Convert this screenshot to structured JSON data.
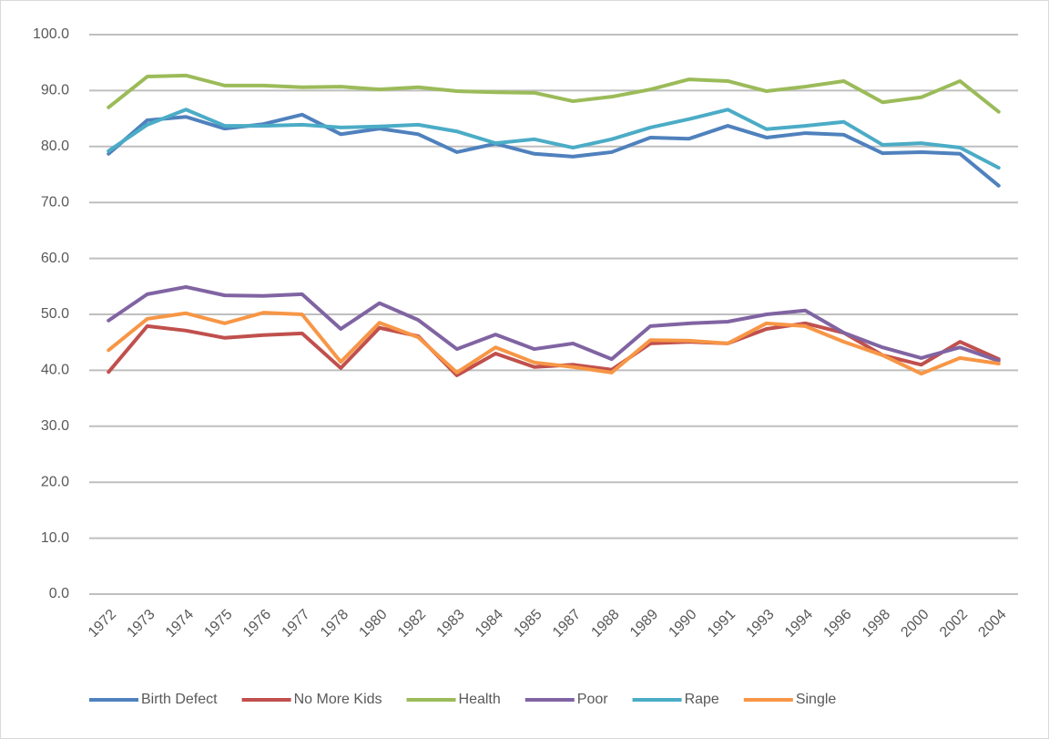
{
  "chart_data": {
    "type": "line",
    "categories": [
      "1972",
      "1973",
      "1974",
      "1975",
      "1976",
      "1977",
      "1978",
      "1980",
      "1982",
      "1983",
      "1984",
      "1985",
      "1987",
      "1988",
      "1989",
      "1990",
      "1991",
      "1993",
      "1994",
      "1996",
      "1998",
      "2000",
      "2002",
      "2004"
    ],
    "series": [
      {
        "name": "Birth Defect",
        "color": "#4f81bd",
        "values": [
          78.7,
          84.7,
          85.3,
          83.2,
          84.0,
          85.7,
          82.2,
          83.2,
          82.2,
          79.0,
          80.5,
          78.7,
          78.2,
          79.0,
          81.6,
          81.4,
          83.7,
          81.6,
          82.4,
          82.1,
          78.8,
          79.0,
          78.7,
          73.0
        ]
      },
      {
        "name": "No More Kids",
        "color": "#c0504d",
        "values": [
          39.7,
          47.9,
          47.1,
          45.8,
          46.3,
          46.6,
          40.4,
          47.6,
          46.1,
          39.1,
          43.0,
          40.6,
          41.0,
          40.1,
          44.8,
          45.1,
          44.8,
          47.4,
          48.4,
          46.7,
          42.7,
          41.0,
          45.1,
          42.0
        ]
      },
      {
        "name": "Health",
        "color": "#9bbb59",
        "values": [
          87.0,
          92.5,
          92.7,
          90.9,
          90.9,
          90.6,
          90.7,
          90.2,
          90.6,
          89.9,
          89.7,
          89.6,
          88.1,
          88.9,
          90.2,
          92.0,
          91.7,
          89.9,
          90.7,
          91.7,
          87.9,
          88.8,
          91.7,
          86.2
        ]
      },
      {
        "name": "Poor",
        "color": "#8064a2",
        "values": [
          48.9,
          53.6,
          54.9,
          53.4,
          53.3,
          53.6,
          47.4,
          52.0,
          49.0,
          43.8,
          46.4,
          43.8,
          44.8,
          42.0,
          47.9,
          48.4,
          48.7,
          50.0,
          50.7,
          46.7,
          44.1,
          42.2,
          44.1,
          41.7
        ]
      },
      {
        "name": "Rape",
        "color": "#4bacc6",
        "values": [
          79.2,
          83.9,
          86.6,
          83.7,
          83.7,
          83.9,
          83.4,
          83.6,
          83.9,
          82.7,
          80.6,
          81.3,
          79.8,
          81.3,
          83.4,
          84.9,
          86.6,
          83.1,
          83.7,
          84.4,
          80.3,
          80.6,
          79.8,
          76.2
        ]
      },
      {
        "name": "Single",
        "color": "#f79646",
        "values": [
          43.6,
          49.2,
          50.2,
          48.4,
          50.3,
          50.0,
          41.5,
          48.5,
          45.9,
          39.6,
          44.1,
          41.4,
          40.6,
          39.6,
          45.4,
          45.3,
          44.8,
          48.4,
          47.9,
          45.1,
          42.7,
          39.4,
          42.2,
          41.2
        ]
      }
    ],
    "ylim": [
      0,
      100
    ],
    "yticks": [
      {
        "value": 0,
        "label": "0.0"
      },
      {
        "value": 10,
        "label": "10.0"
      },
      {
        "value": 20,
        "label": "20.0"
      },
      {
        "value": 30,
        "label": "30.0"
      },
      {
        "value": 40,
        "label": "40.0"
      },
      {
        "value": 50,
        "label": "50.0"
      },
      {
        "value": 60,
        "label": "60.0"
      },
      {
        "value": 70,
        "label": "70.0"
      },
      {
        "value": 80,
        "label": "80.0"
      },
      {
        "value": 90,
        "label": "90.0"
      },
      {
        "value": 100,
        "label": "100.0"
      }
    ],
    "grid": true,
    "legend": "bottom"
  }
}
